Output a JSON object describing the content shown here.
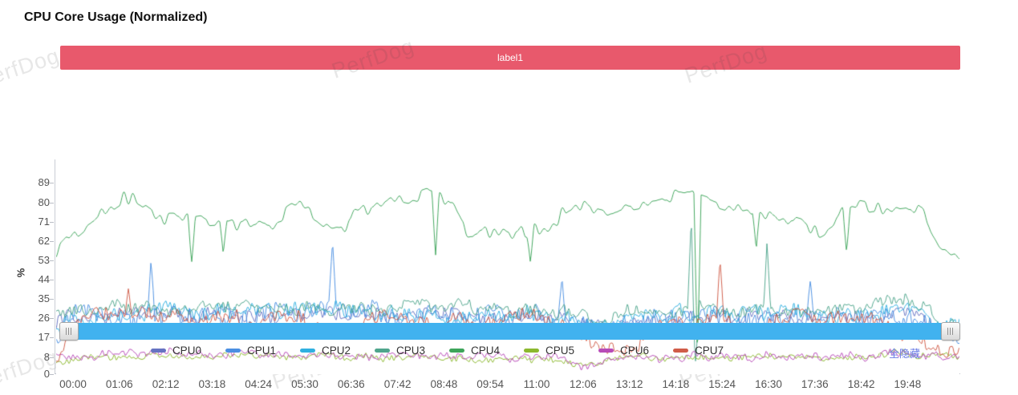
{
  "app": {
    "watermark": "PerfDog"
  },
  "header": {
    "title": "CPU Core Usage (Normalized)"
  },
  "annotation_bar": {
    "label": "label1",
    "color": "#e8596c"
  },
  "controls": {
    "hide_all_label": "全隐藏",
    "link_color": "#6a7ce6"
  },
  "scrollbar": {
    "bar_color": "#41b2ef"
  },
  "chart_data": {
    "type": "line",
    "title": "CPU Core Usage (Normalized)",
    "ylabel": "%",
    "ylim": [
      0,
      100
    ],
    "yticks": [
      0,
      8,
      17,
      26,
      35,
      44,
      53,
      62,
      71,
      80,
      89
    ],
    "x_labels": [
      "00:00",
      "01:06",
      "02:12",
      "03:18",
      "04:24",
      "05:30",
      "06:36",
      "07:42",
      "08:48",
      "09:54",
      "11:00",
      "12:06",
      "13:12",
      "14:18",
      "15:24",
      "16:30",
      "17:36",
      "18:42",
      "19:48"
    ],
    "x_seconds_per_interval": 66,
    "grid": false,
    "legend_position": "bottom",
    "series": [
      {
        "name": "CPU0",
        "color": "#6673c2",
        "clamp": [
          14,
          42
        ],
        "envelope": [
          [
            0,
            23
          ],
          [
            0.02,
            27
          ],
          [
            0.1,
            28
          ],
          [
            0.3,
            28
          ],
          [
            0.5,
            27
          ],
          [
            0.57,
            24
          ],
          [
            0.6,
            20
          ],
          [
            0.63,
            24
          ],
          [
            0.7,
            27
          ],
          [
            0.9,
            27
          ],
          [
            0.95,
            28
          ],
          [
            0.975,
            21
          ],
          [
            1,
            19
          ]
        ],
        "noise": {
          "c1": 70,
          "a1": 2.5,
          "c2": 400,
          "a2": 3.2
        },
        "spikes": []
      },
      {
        "name": "CPU1",
        "color": "#4b8fe2",
        "clamp": [
          13,
          50
        ],
        "envelope": [
          [
            0,
            17
          ],
          [
            0.02,
            26
          ],
          [
            0.1,
            28
          ],
          [
            0.3,
            28
          ],
          [
            0.5,
            27
          ],
          [
            0.57,
            25
          ],
          [
            0.6,
            20
          ],
          [
            0.63,
            25
          ],
          [
            0.7,
            27
          ],
          [
            0.9,
            27
          ],
          [
            0.95,
            29
          ],
          [
            0.975,
            19
          ],
          [
            1,
            20
          ]
        ],
        "noise": {
          "c1": 60,
          "a1": 3.2,
          "c2": 420,
          "a2": 4.5
        },
        "spikes": [
          {
            "t": 0.105,
            "v": 53
          },
          {
            "t": 0.306,
            "v": 62
          },
          {
            "t": 0.56,
            "v": 45
          },
          {
            "t": 0.835,
            "v": 44
          }
        ]
      },
      {
        "name": "CPU2",
        "color": "#30b0e0",
        "clamp": [
          15,
          44
        ],
        "envelope": [
          [
            0,
            21
          ],
          [
            0.02,
            26
          ],
          [
            0.1,
            29
          ],
          [
            0.3,
            29
          ],
          [
            0.5,
            28
          ],
          [
            0.57,
            26
          ],
          [
            0.6,
            21
          ],
          [
            0.63,
            26
          ],
          [
            0.7,
            28
          ],
          [
            0.9,
            28
          ],
          [
            0.95,
            30
          ],
          [
            0.975,
            21
          ],
          [
            1,
            22
          ]
        ],
        "noise": {
          "c1": 65,
          "a1": 2.8,
          "c2": 420,
          "a2": 3.6
        },
        "spikes": []
      },
      {
        "name": "CPU3",
        "color": "#4fa58c",
        "clamp": [
          18,
          46
        ],
        "envelope": [
          [
            0,
            26
          ],
          [
            0.03,
            31
          ],
          [
            0.3,
            32
          ],
          [
            0.5,
            31
          ],
          [
            0.57,
            28
          ],
          [
            0.6,
            24
          ],
          [
            0.63,
            29
          ],
          [
            0.7,
            31
          ],
          [
            0.8,
            30
          ],
          [
            0.9,
            32
          ],
          [
            0.94,
            34
          ],
          [
            0.97,
            27
          ],
          [
            1,
            21
          ]
        ],
        "noise": {
          "c1": 60,
          "a1": 2.6,
          "c2": 400,
          "a2": 3.0
        },
        "spikes": [
          {
            "t": 0.703,
            "v": 72
          },
          {
            "t": 0.708,
            "v": 5
          },
          {
            "t": 0.787,
            "v": 62
          }
        ]
      },
      {
        "name": "CPU4",
        "color": "#3da45a",
        "clamp": [
          46,
          88
        ],
        "envelope": [
          [
            0,
            57
          ],
          [
            0.012,
            64
          ],
          [
            0.04,
            75
          ],
          [
            0.3,
            75
          ],
          [
            0.6,
            74
          ],
          [
            0.9,
            75
          ],
          [
            0.928,
            72
          ],
          [
            0.955,
            70
          ],
          [
            0.968,
            60
          ],
          [
            0.978,
            55
          ],
          [
            1,
            54
          ]
        ],
        "noise": {
          "c1": 26,
          "a1": 9.5,
          "c2": 200,
          "a2": 3.2
        },
        "spikes": [
          {
            "t": 0.15,
            "v": 52
          },
          {
            "t": 0.185,
            "v": 56
          },
          {
            "t": 0.42,
            "v": 55
          },
          {
            "t": 0.525,
            "v": 52
          },
          {
            "t": 0.71,
            "v": 7
          },
          {
            "t": 0.775,
            "v": 58
          },
          {
            "t": 0.875,
            "v": 57
          }
        ]
      },
      {
        "name": "CPU5",
        "color": "#8cb82f",
        "clamp": [
          2,
          14
        ],
        "envelope": [
          [
            0,
            6.5
          ],
          [
            0.1,
            8.5
          ],
          [
            0.3,
            8
          ],
          [
            0.55,
            7
          ],
          [
            0.585,
            4
          ],
          [
            0.62,
            7.5
          ],
          [
            0.9,
            8
          ],
          [
            0.935,
            10
          ],
          [
            0.97,
            8
          ],
          [
            1,
            8
          ]
        ],
        "noise": {
          "c1": 80,
          "a1": 1.1,
          "c2": 420,
          "a2": 1.4
        },
        "spikes": []
      },
      {
        "name": "CPU6",
        "color": "#b84bb8",
        "clamp": [
          2,
          14.5
        ],
        "envelope": [
          [
            0,
            7
          ],
          [
            0.05,
            9
          ],
          [
            0.12,
            10
          ],
          [
            0.3,
            8.5
          ],
          [
            0.55,
            7.5
          ],
          [
            0.585,
            3.5
          ],
          [
            0.62,
            8
          ],
          [
            0.9,
            8
          ],
          [
            0.935,
            11
          ],
          [
            0.97,
            8
          ],
          [
            1,
            8
          ]
        ],
        "noise": {
          "c1": 75,
          "a1": 1.3,
          "c2": 430,
          "a2": 1.6
        },
        "spikes": []
      },
      {
        "name": "CPU7",
        "color": "#d05c48",
        "clamp": [
          6,
          46
        ],
        "envelope": [
          [
            0,
            9
          ],
          [
            0.02,
            22
          ],
          [
            0.05,
            27
          ],
          [
            0.09,
            31
          ],
          [
            0.13,
            23
          ],
          [
            0.2,
            25
          ],
          [
            0.28,
            22
          ],
          [
            0.35,
            25
          ],
          [
            0.45,
            24
          ],
          [
            0.52,
            27
          ],
          [
            0.57,
            22
          ],
          [
            0.6,
            15
          ],
          [
            0.635,
            13
          ],
          [
            0.66,
            25
          ],
          [
            0.7,
            26
          ],
          [
            0.78,
            23
          ],
          [
            0.85,
            26
          ],
          [
            0.9,
            24
          ],
          [
            0.94,
            22
          ],
          [
            0.965,
            13
          ],
          [
            0.985,
            11
          ],
          [
            1,
            15
          ]
        ],
        "noise": {
          "c1": 45,
          "a1": 4.2,
          "c2": 380,
          "a2": 3.4
        },
        "spikes": [
          {
            "t": 0.08,
            "v": 40
          },
          {
            "t": 0.735,
            "v": 53
          }
        ]
      }
    ]
  }
}
